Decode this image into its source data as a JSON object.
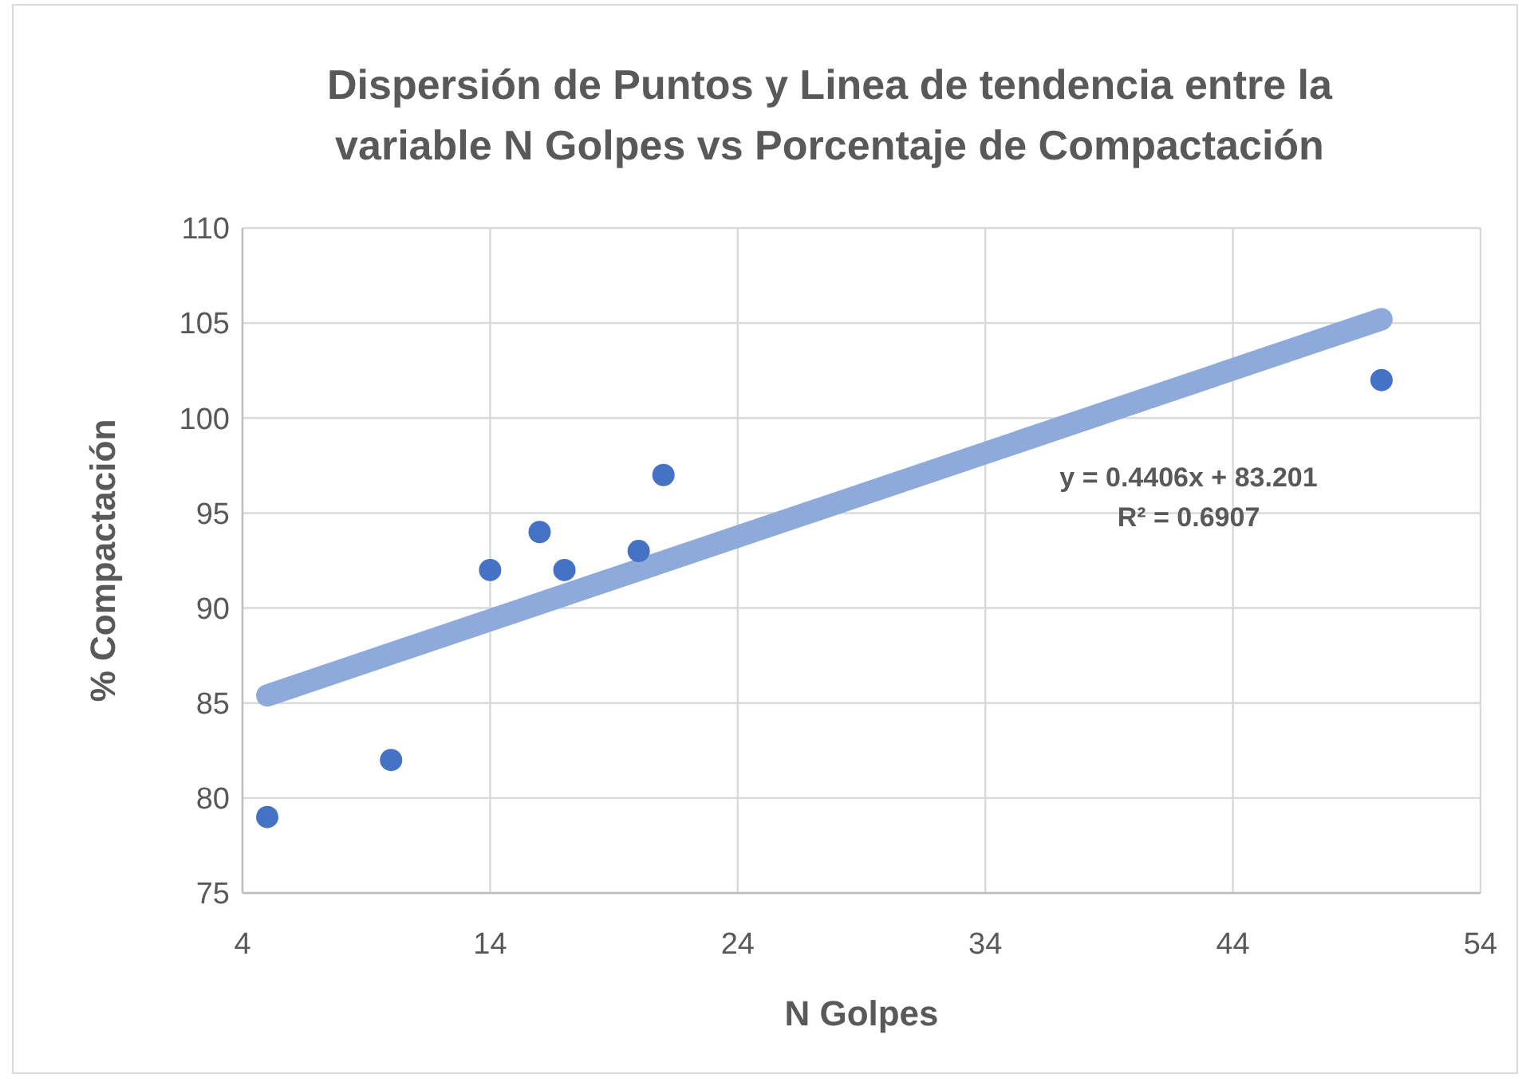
{
  "chart_data": {
    "type": "scatter",
    "title": "Dispersión de Puntos y Linea de tendencia entre la variable N Golpes vs Porcentaje de Compactación",
    "xlabel": "N Golpes",
    "ylabel": "% Compactación",
    "xlim": [
      4,
      54
    ],
    "xticks": [
      4,
      14,
      24,
      34,
      44,
      54
    ],
    "ylim": [
      75,
      110
    ],
    "yticks": [
      75,
      80,
      85,
      90,
      95,
      100,
      105,
      110
    ],
    "grid": true,
    "series": [
      {
        "marker": "circle",
        "color": "#4472c4",
        "x": [
          5,
          10,
          14,
          16,
          17,
          20,
          21,
          50
        ],
        "values": [
          79,
          82,
          92,
          94,
          92,
          93,
          97,
          102
        ]
      },
      {
        "type": "line",
        "color": "#8eaadb",
        "x": [
          5,
          50
        ],
        "values": [
          85.4,
          105.2
        ]
      }
    ],
    "annotations": [
      "y = 0.4406x + 83.201",
      "R² = 0.6907"
    ]
  }
}
